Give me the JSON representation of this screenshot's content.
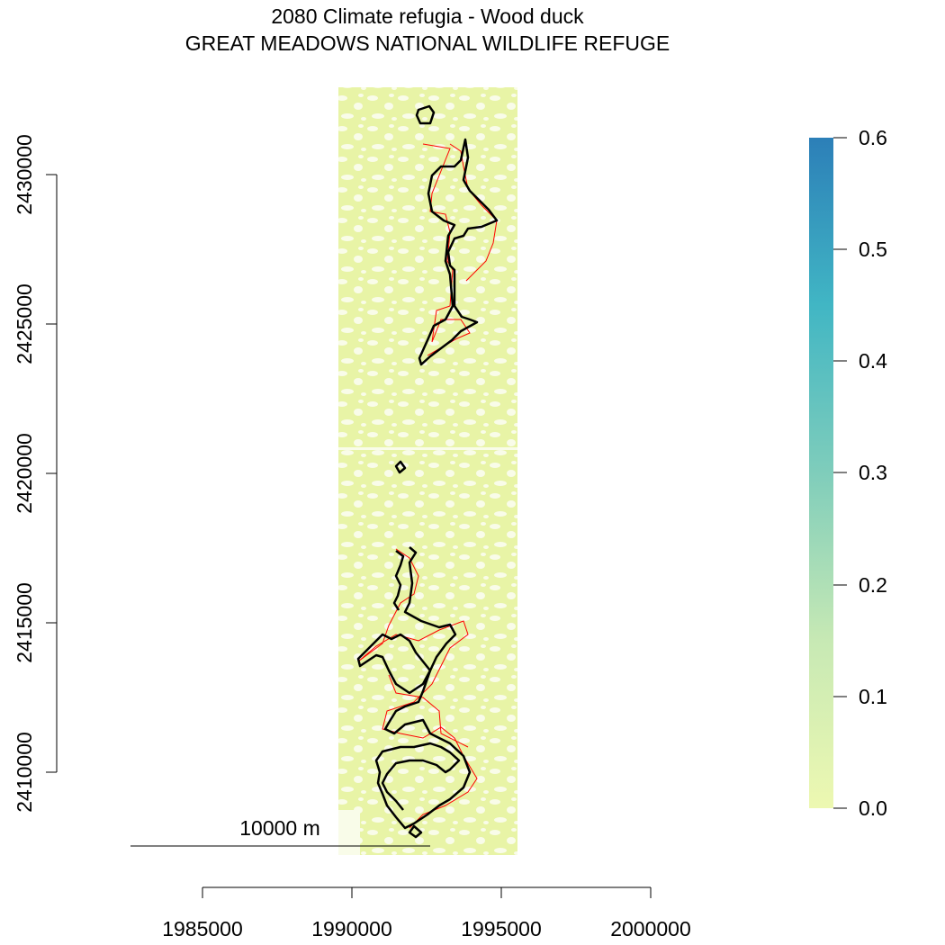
{
  "title": "2080 Climate refugia - Wood duck",
  "subtitle": "GREAT MEADOWS NATIONAL WILDLIFE REFUGE",
  "x_axis": {
    "ticks": [
      "1985000",
      "1990000",
      "1995000",
      "2000000"
    ]
  },
  "y_axis": {
    "ticks": [
      "2410000",
      "2415000",
      "2420000",
      "2425000",
      "2430000"
    ]
  },
  "scale_bar": {
    "label": "10000 m"
  },
  "legend": {
    "ticks": [
      "0.0",
      "0.1",
      "0.2",
      "0.3",
      "0.4",
      "0.5",
      "0.6"
    ],
    "range": [
      0,
      0.6
    ],
    "colors": [
      "#edf8b1",
      "#c7e9b4",
      "#7fcdbb",
      "#41b6c4",
      "#2c7fb8"
    ]
  },
  "colors": {
    "raster_fill": "#e9f5a6",
    "refuge_boundary": "#000000",
    "refugia_outline": "#ff0000"
  }
}
